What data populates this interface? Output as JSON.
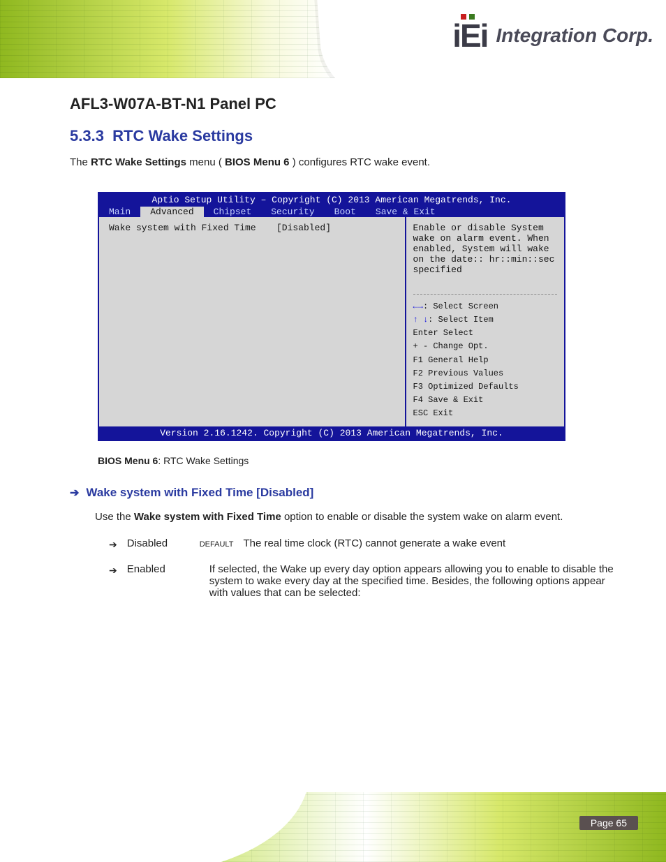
{
  "header": {
    "doc_title": "AFL3-W07A-BT-N1 Panel PC",
    "logo_company": "iEi",
    "logo_suffix_text": "Integration Corp."
  },
  "section": {
    "number": "5.3.3",
    "title": "RTC Wake Settings",
    "intro_pre": "The ",
    "intro_bold": "RTC Wake Settings",
    "intro_post": " menu (",
    "intro_ref": "BIOS Menu 6",
    "intro_tail": ") configures RTC wake event."
  },
  "bios_panel": {
    "title": "Aptio Setup Utility – Copyright (C) 2013 American Megatrends, Inc.",
    "tabs": [
      "Main",
      "Advanced",
      "Chipset",
      "Security",
      "Boot",
      "Save & Exit"
    ],
    "active_tab_index": 1,
    "current_setting_label": "Wake system with Fixed Time",
    "current_setting_value": "[Disabled]",
    "help_text": "Enable or disable System wake on alarm event. When enabled, System will wake on the date:: hr::min::sec specified",
    "keys": [
      {
        "key_class": "arrows",
        "key": "←→",
        "desc": ": Select Screen"
      },
      {
        "key_class": "arrows",
        "key": "↑ ↓",
        "desc": ": Select Item"
      },
      {
        "key_class": "",
        "key": "Enter",
        "desc": "Select"
      },
      {
        "key_class": "",
        "key": "+ -",
        "desc": "Change Opt."
      },
      {
        "key_class": "",
        "key": "F1",
        "desc": "General Help"
      },
      {
        "key_class": "",
        "key": "F2",
        "desc": "Previous Values"
      },
      {
        "key_class": "",
        "key": "F3",
        "desc": "Optimized Defaults"
      },
      {
        "key_class": "",
        "key": "F4",
        "desc": "Save & Exit"
      },
      {
        "key_class": "",
        "key": "ESC",
        "desc": "Exit"
      }
    ],
    "footer": "Version 2.16.1242. Copyright (C) 2013 American Megatrends, Inc."
  },
  "caption": {
    "ref": "BIOS Menu 6",
    "text": ": RTC Wake Settings"
  },
  "option": {
    "heading": "Wake system with Fixed Time [Disabled]",
    "desc_pre": "Use the ",
    "desc_bold": "Wake system with Fixed Time",
    "desc_post": " option to enable or disable the system wake on alarm event.",
    "values": [
      {
        "val": "Disabled",
        "def": "DEFAULT",
        "desc": "The real time clock (RTC) cannot generate a wake event"
      },
      {
        "val": "Enabled",
        "def": "",
        "desc": "If selected, the Wake up every day option appears allowing you to enable to disable the system to wake every day at the specified time. Besides, the following options appear with values that can be selected:"
      }
    ]
  },
  "footer": {
    "page_no": "Page 65"
  },
  "colors": {
    "brand_blue": "#14149a",
    "panel_gray": "#d6d6d6",
    "heading_blue": "#2a3aa0",
    "green_dark": "#6da51f",
    "green_light": "#cfe77a"
  }
}
